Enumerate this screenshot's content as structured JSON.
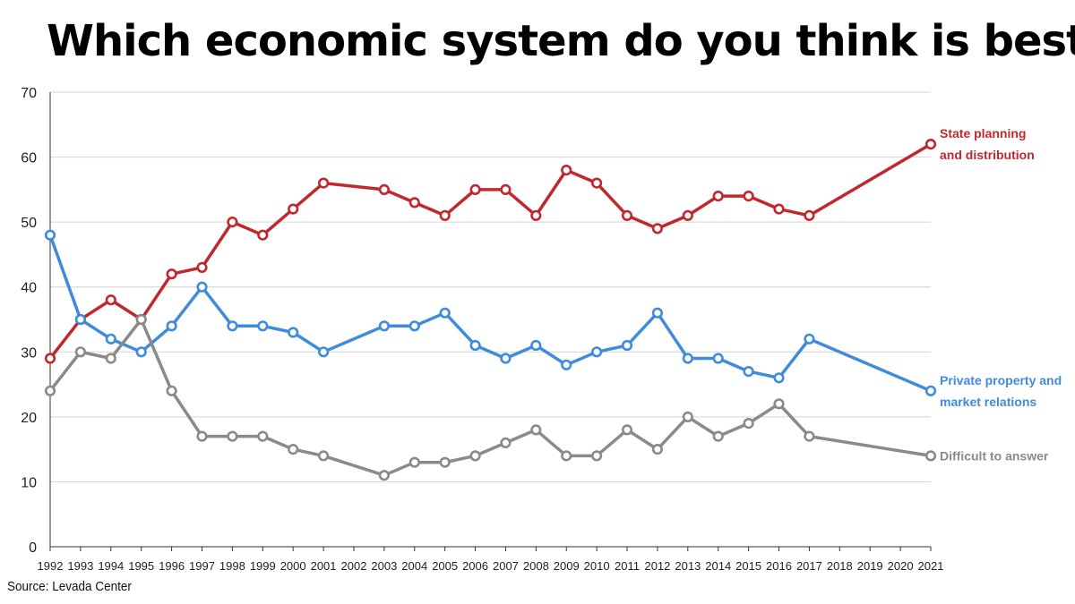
{
  "chart_data": {
    "type": "line",
    "title": "Which economic system do you think is best?",
    "source": "Source: Levada Center",
    "x_categories": [
      "1992",
      "1993",
      "1994",
      "1995",
      "1996",
      "1997",
      "1998",
      "1999",
      "2000",
      "2001",
      "2002",
      "2003",
      "2004",
      "2005",
      "2006",
      "2007",
      "2008",
      "2009",
      "2010",
      "2011",
      "2012",
      "2013",
      "2014",
      "2015",
      "2016",
      "2017",
      "2018",
      "2019",
      "2020",
      "2021"
    ],
    "ylim": [
      0,
      70
    ],
    "y_ticks": [
      0,
      10,
      20,
      30,
      40,
      50,
      60,
      70
    ],
    "grid": "horizontal",
    "series": [
      {
        "name_lines": [
          "State planning",
          "and distribution"
        ],
        "color": "#c0282d",
        "points": [
          [
            "1992",
            29
          ],
          [
            "1993",
            35
          ],
          [
            "1994",
            38
          ],
          [
            "1995",
            35
          ],
          [
            "1996",
            42
          ],
          [
            "1997",
            43
          ],
          [
            "1998",
            50
          ],
          [
            "1999",
            48
          ],
          [
            "2000",
            52
          ],
          [
            "2001",
            56
          ],
          [
            "2003",
            55
          ],
          [
            "2004",
            53
          ],
          [
            "2005",
            51
          ],
          [
            "2006",
            55
          ],
          [
            "2007",
            55
          ],
          [
            "2008",
            51
          ],
          [
            "2009",
            58
          ],
          [
            "2010",
            56
          ],
          [
            "2011",
            51
          ],
          [
            "2012",
            49
          ],
          [
            "2013",
            51
          ],
          [
            "2014",
            54
          ],
          [
            "2015",
            54
          ],
          [
            "2016",
            52
          ],
          [
            "2017",
            51
          ],
          [
            "2021",
            62
          ]
        ]
      },
      {
        "name_lines": [
          "Private property and",
          "market relations"
        ],
        "color": "#3f8bdc",
        "points": [
          [
            "1992",
            48
          ],
          [
            "1993",
            35
          ],
          [
            "1994",
            32
          ],
          [
            "1995",
            30
          ],
          [
            "1996",
            34
          ],
          [
            "1997",
            40
          ],
          [
            "1998",
            34
          ],
          [
            "1999",
            34
          ],
          [
            "2000",
            33
          ],
          [
            "2001",
            30
          ],
          [
            "2003",
            34
          ],
          [
            "2004",
            34
          ],
          [
            "2005",
            36
          ],
          [
            "2006",
            31
          ],
          [
            "2007",
            29
          ],
          [
            "2008",
            31
          ],
          [
            "2009",
            28
          ],
          [
            "2010",
            30
          ],
          [
            "2011",
            31
          ],
          [
            "2012",
            36
          ],
          [
            "2013",
            29
          ],
          [
            "2014",
            29
          ],
          [
            "2015",
            27
          ],
          [
            "2016",
            26
          ],
          [
            "2017",
            32
          ],
          [
            "2021",
            24
          ]
        ]
      },
      {
        "name_lines": [
          "Difficult to answer"
        ],
        "color": "#8a8a8a",
        "points": [
          [
            "1992",
            24
          ],
          [
            "1993",
            30
          ],
          [
            "1994",
            29
          ],
          [
            "1995",
            35
          ],
          [
            "1996",
            24
          ],
          [
            "1997",
            17
          ],
          [
            "1998",
            17
          ],
          [
            "1999",
            17
          ],
          [
            "2000",
            15
          ],
          [
            "2001",
            14
          ],
          [
            "2003",
            11
          ],
          [
            "2004",
            13
          ],
          [
            "2005",
            13
          ],
          [
            "2006",
            14
          ],
          [
            "2007",
            16
          ],
          [
            "2008",
            18
          ],
          [
            "2009",
            14
          ],
          [
            "2010",
            14
          ],
          [
            "2011",
            18
          ],
          [
            "2012",
            15
          ],
          [
            "2013",
            20
          ],
          [
            "2014",
            17
          ],
          [
            "2015",
            19
          ],
          [
            "2016",
            22
          ],
          [
            "2017",
            17
          ],
          [
            "2021",
            14
          ]
        ]
      }
    ]
  }
}
